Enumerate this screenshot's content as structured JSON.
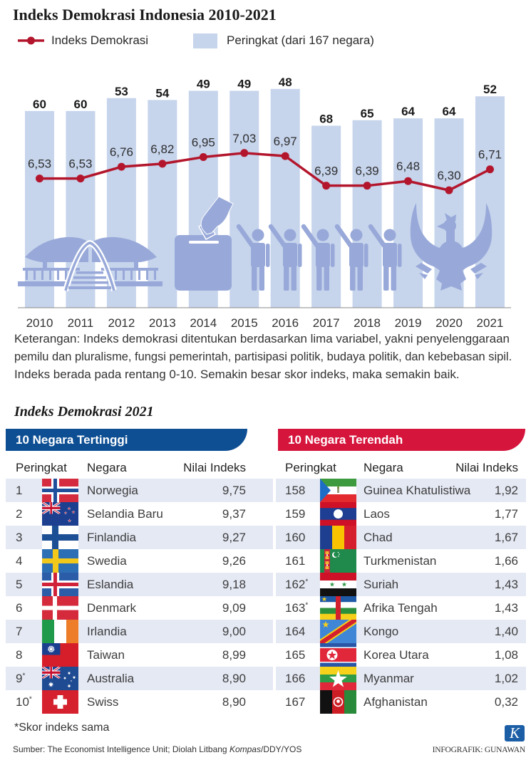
{
  "chart_data": {
    "type": "bar",
    "title": "Indeks Demokrasi Indonesia 2010-2021",
    "categories": [
      "2010",
      "2011",
      "2012",
      "2013",
      "2014",
      "2015",
      "2016",
      "2017",
      "2018",
      "2019",
      "2020",
      "2021"
    ],
    "legend_position": "top-left",
    "grid": false,
    "xlabel": "",
    "ylabel": "",
    "series": [
      {
        "name": "Indeks Demokrasi",
        "type": "line",
        "values": [
          6.53,
          6.53,
          6.76,
          6.82,
          6.95,
          7.03,
          6.97,
          6.39,
          6.39,
          6.48,
          6.3,
          6.71
        ],
        "labels": [
          "6,53",
          "6,53",
          "6,76",
          "6,82",
          "6,95",
          "7,03",
          "6,97",
          "6,39",
          "6,39",
          "6,48",
          "6,30",
          "6,71"
        ],
        "ylim": [
          4,
          9
        ]
      },
      {
        "name": "Peringkat (dari 167 negara)",
        "type": "bar",
        "values": [
          60,
          60,
          53,
          54,
          49,
          49,
          48,
          68,
          65,
          64,
          64,
          52
        ],
        "ylim": [
          167,
          0
        ]
      }
    ]
  },
  "colors": {
    "bar": "#c6d4ec",
    "line": "#b3162c",
    "illustration": "#98a9d9",
    "axis": "#8a8a8a",
    "top_banner": "#0e4f94",
    "bottom_banner": "#d6153d",
    "logo": "#1b5ea6"
  },
  "illustration_icons": [
    "parliament-building-icon",
    "ballot-box-icon",
    "people-group-icon",
    "garuda-emblem-icon"
  ],
  "note_lines": [
    "Keterangan: Indeks demokrasi ditentukan berdasarkan lima variabel, yakni penyelenggaraan",
    "pemilu dan pluralisme, fungsi pemerintah, partisipasi politik, budaya politik, dan kebebasan sipil.",
    "Indeks berada pada rentang 0-10. Semakin besar skor indeks, maka semakin baik."
  ],
  "rankings": {
    "title": "Indeks Demokrasi 2021",
    "columns": [
      "Peringkat",
      "Negara",
      "Nilai Indeks"
    ],
    "highest": {
      "heading": "10 Negara Tertinggi",
      "rows": [
        {
          "rank": "1",
          "mark": "",
          "country": "Norwegia",
          "value": "9,75",
          "flag": "norway-flag"
        },
        {
          "rank": "2",
          "mark": "",
          "country": "Selandia Baru",
          "value": "9,37",
          "flag": "new-zealand-flag"
        },
        {
          "rank": "3",
          "mark": "",
          "country": "Finlandia",
          "value": "9,27",
          "flag": "finland-flag"
        },
        {
          "rank": "4",
          "mark": "",
          "country": "Swedia",
          "value": "9,26",
          "flag": "sweden-flag"
        },
        {
          "rank": "5",
          "mark": "",
          "country": "Eslandia",
          "value": "9,18",
          "flag": "iceland-flag"
        },
        {
          "rank": "6",
          "mark": "",
          "country": "Denmark",
          "value": "9,09",
          "flag": "denmark-flag"
        },
        {
          "rank": "7",
          "mark": "",
          "country": "Irlandia",
          "value": "9,00",
          "flag": "ireland-flag"
        },
        {
          "rank": "8",
          "mark": "",
          "country": "Taiwan",
          "value": "8,99",
          "flag": "taiwan-flag"
        },
        {
          "rank": "9",
          "mark": "*",
          "country": "Australia",
          "value": "8,90",
          "flag": "australia-flag"
        },
        {
          "rank": "10",
          "mark": "*",
          "country": "Swiss",
          "value": "8,90",
          "flag": "switzerland-flag"
        }
      ]
    },
    "lowest": {
      "heading": "10 Negara Terendah",
      "rows": [
        {
          "rank": "158",
          "mark": "",
          "country": "Guinea Khatulistiwa",
          "value": "1,92",
          "flag": "equatorial-guinea-flag"
        },
        {
          "rank": "159",
          "mark": "",
          "country": "Laos",
          "value": "1,77",
          "flag": "laos-flag"
        },
        {
          "rank": "160",
          "mark": "",
          "country": "Chad",
          "value": "1,67",
          "flag": "chad-flag"
        },
        {
          "rank": "161",
          "mark": "",
          "country": "Turkmenistan",
          "value": "1,66",
          "flag": "turkmenistan-flag"
        },
        {
          "rank": "162",
          "mark": "*",
          "country": "Suriah",
          "value": "1,43",
          "flag": "syria-flag"
        },
        {
          "rank": "163",
          "mark": "*",
          "country": "Afrika Tengah",
          "value": "1,43",
          "flag": "central-african-republic-flag"
        },
        {
          "rank": "164",
          "mark": "",
          "country": "Kongo",
          "value": "1,40",
          "flag": "dr-congo-flag"
        },
        {
          "rank": "165",
          "mark": "",
          "country": "Korea Utara",
          "value": "1,08",
          "flag": "north-korea-flag"
        },
        {
          "rank": "166",
          "mark": "",
          "country": "Myanmar",
          "value": "1,02",
          "flag": "myanmar-flag"
        },
        {
          "rank": "167",
          "mark": "",
          "country": "Afghanistan",
          "value": "0,32",
          "flag": "afghanistan-flag"
        }
      ]
    },
    "footnote": "*Skor indeks sama"
  },
  "footer": {
    "source_prefix": "Sumber: The Economist Intelligence Unit; Diolah Litbang ",
    "source_italic": "Kompas",
    "source_suffix": "/DDY/YOS",
    "logo_letter": "K",
    "credit": "INFOGRAFIK: GUNAWAN"
  }
}
